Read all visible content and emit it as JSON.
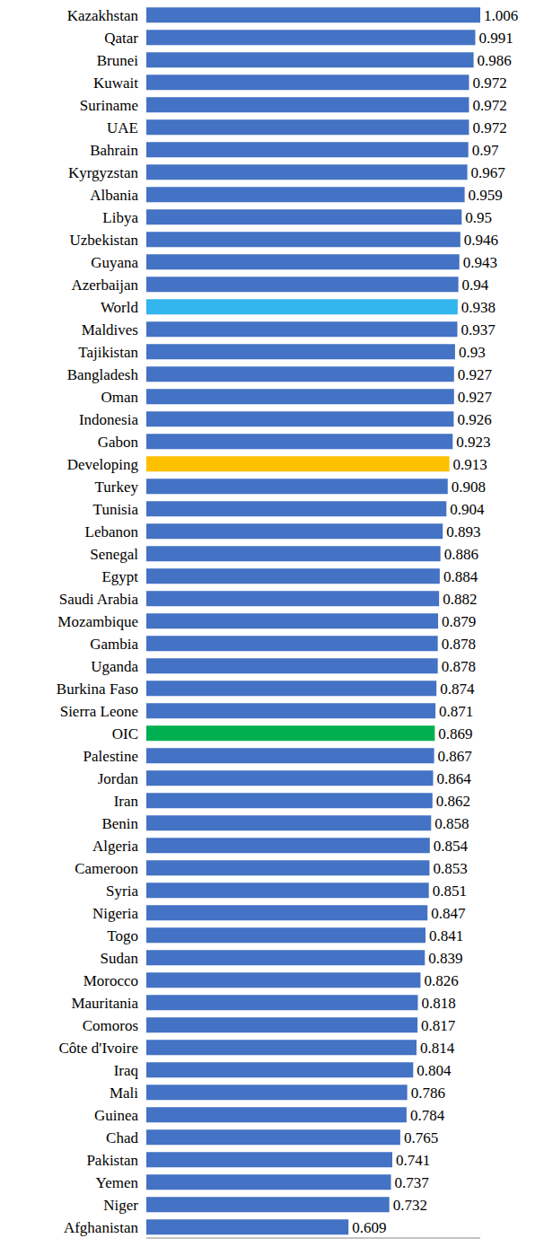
{
  "chart_data": {
    "type": "bar",
    "orientation": "horizontal",
    "categories": [
      "Kazakhstan",
      "Qatar",
      "Brunei",
      "Kuwait",
      "Suriname",
      "UAE",
      "Bahrain",
      "Kyrgyzstan",
      "Albania",
      "Libya",
      "Uzbekistan",
      "Guyana",
      "Azerbaijan",
      "World",
      "Maldives",
      "Tajikistan",
      "Bangladesh",
      "Oman",
      "Indonesia",
      "Gabon",
      "Developing",
      "Turkey",
      "Tunisia",
      "Lebanon",
      "Senegal",
      "Egypt",
      "Saudi Arabia",
      "Mozambique",
      "Gambia",
      "Uganda",
      "Burkina Faso",
      "Sierra Leone",
      "OIC",
      "Palestine",
      "Jordan",
      "Iran",
      "Benin",
      "Algeria",
      "Cameroon",
      "Syria",
      "Nigeria",
      "Togo",
      "Sudan",
      "Morocco",
      "Mauritania",
      "Comoros",
      "Côte d'Ivoire",
      "Iraq",
      "Mali",
      "Guinea",
      "Chad",
      "Pakistan",
      "Yemen",
      "Niger",
      "Afghanistan"
    ],
    "values": [
      1.006,
      0.991,
      0.986,
      0.972,
      0.972,
      0.972,
      0.97,
      0.967,
      0.959,
      0.95,
      0.946,
      0.943,
      0.94,
      0.938,
      0.937,
      0.93,
      0.927,
      0.927,
      0.926,
      0.923,
      0.913,
      0.908,
      0.904,
      0.893,
      0.886,
      0.884,
      0.882,
      0.879,
      0.878,
      0.878,
      0.874,
      0.871,
      0.869,
      0.867,
      0.864,
      0.862,
      0.858,
      0.854,
      0.853,
      0.851,
      0.847,
      0.841,
      0.839,
      0.826,
      0.818,
      0.817,
      0.814,
      0.804,
      0.786,
      0.784,
      0.765,
      0.741,
      0.737,
      0.732,
      0.609
    ],
    "color": "#4472c4",
    "colors": [
      "#4472c4",
      "#4472c4",
      "#4472c4",
      "#4472c4",
      "#4472c4",
      "#4472c4",
      "#4472c4",
      "#4472c4",
      "#4472c4",
      "#4472c4",
      "#4472c4",
      "#4472c4",
      "#4472c4",
      "#33b5ee",
      "#4472c4",
      "#4472c4",
      "#4472c4",
      "#4472c4",
      "#4472c4",
      "#4472c4",
      "#ffc000",
      "#4472c4",
      "#4472c4",
      "#4472c4",
      "#4472c4",
      "#4472c4",
      "#4472c4",
      "#4472c4",
      "#4472c4",
      "#4472c4",
      "#4472c4",
      "#4472c4",
      "#00b050",
      "#4472c4",
      "#4472c4",
      "#4472c4",
      "#4472c4",
      "#4472c4",
      "#4472c4",
      "#4472c4",
      "#4472c4",
      "#4472c4",
      "#4472c4",
      "#4472c4",
      "#4472c4",
      "#4472c4",
      "#4472c4",
      "#4472c4",
      "#4472c4",
      "#4472c4",
      "#4472c4",
      "#4472c4",
      "#4472c4",
      "#4472c4",
      "#4472c4"
    ],
    "xlim": [
      0,
      1.006
    ],
    "grid": false,
    "data_labels": true,
    "tick_labels": "y"
  }
}
